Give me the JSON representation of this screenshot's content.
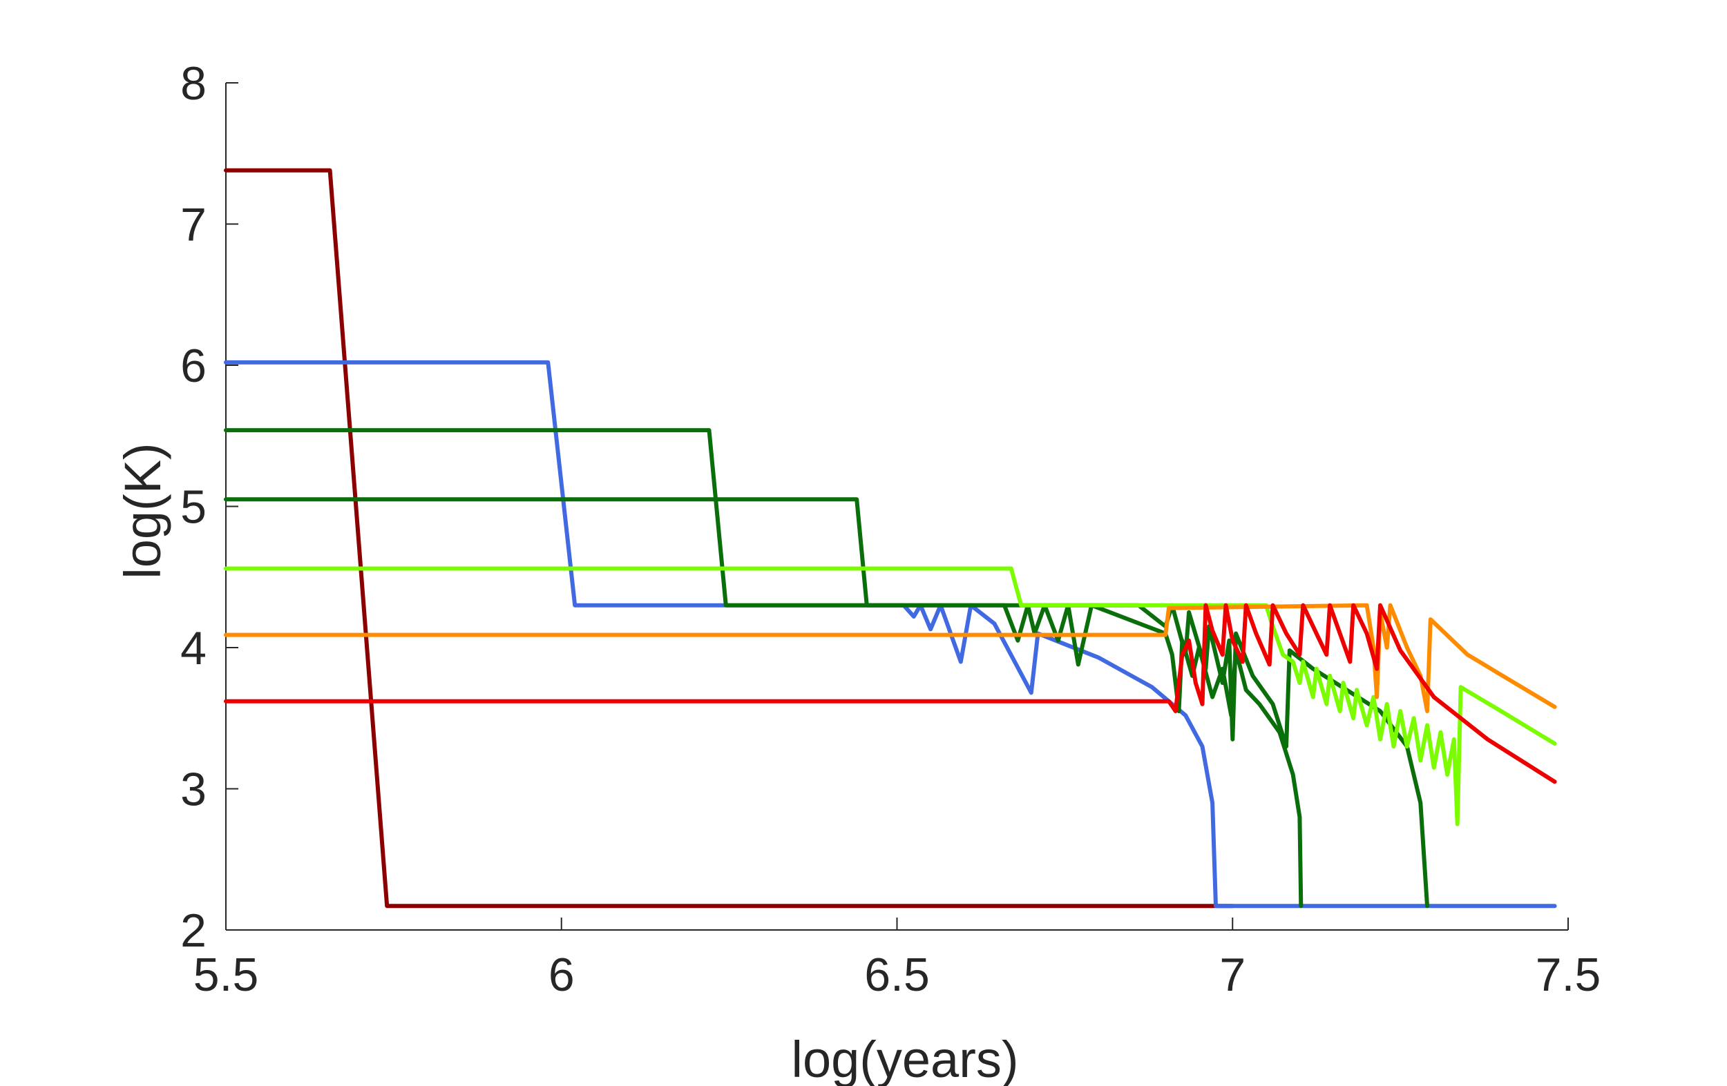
{
  "chart_data": {
    "type": "line",
    "title": "",
    "xlabel": "log(years)",
    "ylabel": "log(K)",
    "xlim": [
      5.5,
      7.5
    ],
    "ylim": [
      2,
      8
    ],
    "xticks": [
      5.5,
      6,
      6.5,
      7,
      7.5
    ],
    "xtick_labels": [
      "5.5",
      "6",
      "6.5",
      "7",
      "7.5"
    ],
    "yticks": [
      2,
      3,
      4,
      5,
      6,
      7,
      8
    ],
    "ytick_labels": [
      "2",
      "3",
      "4",
      "5",
      "6",
      "7",
      "8"
    ],
    "grid": false,
    "series": [
      {
        "name": "dark-red",
        "color": "#8B0000",
        "points": [
          [
            5.5,
            7.38
          ],
          [
            5.655,
            7.38
          ],
          [
            5.74,
            2.17
          ],
          [
            7.0,
            2.17
          ]
        ]
      },
      {
        "name": "blue",
        "color": "#4169E1",
        "points": [
          [
            5.5,
            6.02
          ],
          [
            5.98,
            6.02
          ],
          [
            6.02,
            4.3
          ],
          [
            6.51,
            4.3
          ],
          [
            6.525,
            4.22
          ],
          [
            6.535,
            4.3
          ],
          [
            6.55,
            4.13
          ],
          [
            6.565,
            4.3
          ],
          [
            6.595,
            3.9
          ],
          [
            6.61,
            4.3
          ],
          [
            6.645,
            4.17
          ],
          [
            6.7,
            3.68
          ],
          [
            6.71,
            4.1
          ],
          [
            6.8,
            3.93
          ],
          [
            6.88,
            3.72
          ],
          [
            6.93,
            3.52
          ],
          [
            6.955,
            3.3
          ],
          [
            6.97,
            2.9
          ],
          [
            6.975,
            2.17
          ],
          [
            7.48,
            2.17
          ]
        ]
      },
      {
        "name": "dark-green-1",
        "color": "#0A6E0A",
        "points": [
          [
            5.5,
            5.54
          ],
          [
            6.22,
            5.54
          ],
          [
            6.245,
            4.3
          ],
          [
            6.66,
            4.3
          ],
          [
            6.68,
            4.05
          ],
          [
            6.695,
            4.3
          ],
          [
            6.705,
            4.1
          ],
          [
            6.72,
            4.3
          ],
          [
            6.74,
            4.05
          ],
          [
            6.755,
            4.3
          ],
          [
            6.77,
            3.88
          ],
          [
            6.79,
            4.3
          ],
          [
            6.9,
            4.1
          ],
          [
            6.91,
            3.95
          ],
          [
            6.92,
            3.55
          ],
          [
            6.925,
            4.05
          ],
          [
            6.94,
            3.8
          ],
          [
            6.95,
            4.0
          ],
          [
            6.97,
            3.65
          ],
          [
            6.985,
            3.85
          ],
          [
            6.998,
            3.52
          ],
          [
            7.005,
            3.98
          ],
          [
            7.02,
            3.7
          ],
          [
            7.04,
            3.6
          ],
          [
            7.07,
            3.4
          ],
          [
            7.09,
            3.1
          ],
          [
            7.1,
            2.8
          ],
          [
            7.102,
            2.17
          ]
        ]
      },
      {
        "name": "dark-green-2",
        "color": "#0A6E0A",
        "points": [
          [
            5.5,
            5.05
          ],
          [
            6.44,
            5.05
          ],
          [
            6.455,
            4.3
          ],
          [
            6.86,
            4.3
          ],
          [
            6.9,
            4.15
          ],
          [
            6.91,
            4.3
          ],
          [
            6.93,
            3.95
          ],
          [
            6.935,
            4.25
          ],
          [
            6.96,
            3.85
          ],
          [
            6.965,
            4.15
          ],
          [
            6.985,
            3.75
          ],
          [
            6.995,
            4.05
          ],
          [
            7.0,
            3.35
          ],
          [
            7.005,
            4.1
          ],
          [
            7.03,
            3.8
          ],
          [
            7.06,
            3.6
          ],
          [
            7.08,
            3.3
          ],
          [
            7.085,
            3.98
          ],
          [
            7.12,
            3.85
          ],
          [
            7.17,
            3.7
          ],
          [
            7.22,
            3.55
          ],
          [
            7.26,
            3.3
          ],
          [
            7.28,
            2.9
          ],
          [
            7.29,
            2.17
          ]
        ]
      },
      {
        "name": "lime",
        "color": "#7CFC00",
        "points": [
          [
            5.5,
            4.56
          ],
          [
            6.67,
            4.56
          ],
          [
            6.685,
            4.3
          ],
          [
            7.05,
            4.3
          ],
          [
            7.06,
            4.15
          ],
          [
            7.075,
            3.95
          ],
          [
            7.09,
            3.9
          ],
          [
            7.1,
            3.75
          ],
          [
            7.105,
            3.9
          ],
          [
            7.12,
            3.65
          ],
          [
            7.125,
            3.85
          ],
          [
            7.14,
            3.6
          ],
          [
            7.145,
            3.8
          ],
          [
            7.16,
            3.55
          ],
          [
            7.165,
            3.75
          ],
          [
            7.18,
            3.5
          ],
          [
            7.185,
            3.7
          ],
          [
            7.2,
            3.45
          ],
          [
            7.21,
            3.65
          ],
          [
            7.22,
            3.35
          ],
          [
            7.23,
            3.6
          ],
          [
            7.24,
            3.3
          ],
          [
            7.25,
            3.55
          ],
          [
            7.26,
            3.3
          ],
          [
            7.27,
            3.5
          ],
          [
            7.28,
            3.2
          ],
          [
            7.29,
            3.45
          ],
          [
            7.3,
            3.15
          ],
          [
            7.31,
            3.4
          ],
          [
            7.32,
            3.1
          ],
          [
            7.33,
            3.35
          ],
          [
            7.335,
            2.75
          ],
          [
            7.34,
            3.72
          ],
          [
            7.4,
            3.55
          ],
          [
            7.48,
            3.32
          ]
        ]
      },
      {
        "name": "orange",
        "color": "#FF8C00",
        "points": [
          [
            5.5,
            4.09
          ],
          [
            6.9,
            4.09
          ],
          [
            6.905,
            4.28
          ],
          [
            7.2,
            4.3
          ],
          [
            7.21,
            4.0
          ],
          [
            7.215,
            3.65
          ],
          [
            7.22,
            4.25
          ],
          [
            7.23,
            4.0
          ],
          [
            7.235,
            4.3
          ],
          [
            7.26,
            4.0
          ],
          [
            7.28,
            3.8
          ],
          [
            7.29,
            3.55
          ],
          [
            7.295,
            4.2
          ],
          [
            7.35,
            3.95
          ],
          [
            7.42,
            3.75
          ],
          [
            7.48,
            3.58
          ]
        ]
      },
      {
        "name": "red",
        "color": "#EE0000",
        "points": [
          [
            5.5,
            3.62
          ],
          [
            6.905,
            3.62
          ],
          [
            6.915,
            3.55
          ],
          [
            6.92,
            3.75
          ],
          [
            6.925,
            3.95
          ],
          [
            6.935,
            4.05
          ],
          [
            6.945,
            3.75
          ],
          [
            6.955,
            3.6
          ],
          [
            6.96,
            4.3
          ],
          [
            6.97,
            4.12
          ],
          [
            6.985,
            3.95
          ],
          [
            6.99,
            4.3
          ],
          [
            7.0,
            4.05
          ],
          [
            7.015,
            3.9
          ],
          [
            7.02,
            4.3
          ],
          [
            7.035,
            4.1
          ],
          [
            7.055,
            3.88
          ],
          [
            7.06,
            4.3
          ],
          [
            7.08,
            4.1
          ],
          [
            7.1,
            3.95
          ],
          [
            7.105,
            4.3
          ],
          [
            7.125,
            4.1
          ],
          [
            7.14,
            3.95
          ],
          [
            7.145,
            4.3
          ],
          [
            7.16,
            4.1
          ],
          [
            7.175,
            3.9
          ],
          [
            7.18,
            4.3
          ],
          [
            7.2,
            4.1
          ],
          [
            7.215,
            3.85
          ],
          [
            7.22,
            4.3
          ],
          [
            7.25,
            3.98
          ],
          [
            7.3,
            3.65
          ],
          [
            7.38,
            3.35
          ],
          [
            7.48,
            3.05
          ]
        ]
      }
    ]
  }
}
